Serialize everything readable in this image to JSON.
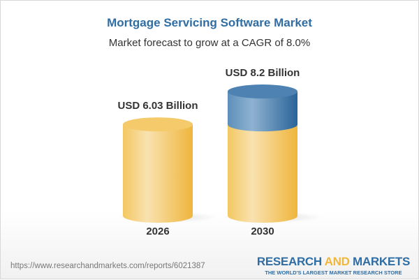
{
  "chart_data": {
    "type": "bar",
    "title": "Mortgage Servicing Software Market",
    "subtitle": "Market forecast to grow at a CAGR of 8.0%",
    "categories": [
      "2026",
      "2030"
    ],
    "values": [
      6.03,
      8.2
    ],
    "value_labels": [
      "USD 6.03 Billion",
      "USD 8.2 Billion"
    ],
    "unit": "USD Billion",
    "style": "3d-cylinder",
    "grid": false,
    "colors": {
      "base": "#f2c45a",
      "growth": "#3f78a8",
      "title": "#2f6da3"
    }
  },
  "footer": {
    "url": "https://www.researchandmarkets.com/reports/6021387",
    "logo_part1": "RESEARCH ",
    "logo_part2": "AND",
    "logo_part3": " MARKETS",
    "logo_tagline": "THE WORLD'S LARGEST MARKET RESEARCH STORE"
  }
}
